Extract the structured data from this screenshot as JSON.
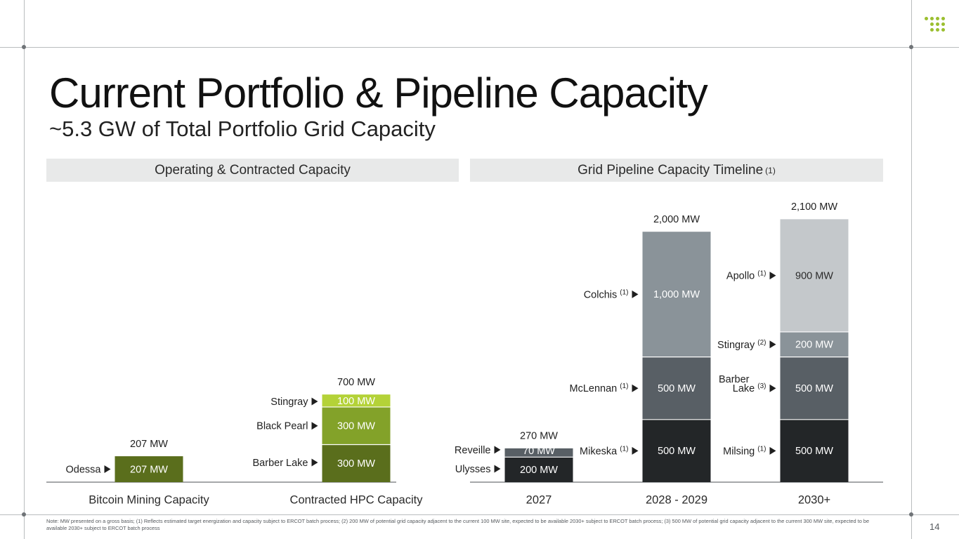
{
  "page": {
    "title": "Current Portfolio & Pipeline Capacity",
    "subtitle": "~5.3 GW of Total Portfolio Grid Capacity",
    "left_panel_title": "Operating & Contracted Capacity",
    "right_panel_title": "Grid Pipeline Capacity Timeline",
    "right_panel_note": "(1)",
    "footnote": "Note: MW presented on a gross basis; (1) Reflects estimated target energization and capacity subject to ERCOT batch process; (2) 200 MW of potential grid capacity adjacent to the current 100 MW site, expected to be available 2030+ subject to ERCOT batch process; (3) 500 MW of potential grid capacity adjacent to the current 300 MW site, expected to be available 2030+ subject to ERCOT batch process",
    "page_number": "14",
    "logo_icon": "dot-grid-logo-icon"
  },
  "colors": {
    "frame": "#b9bcbe",
    "panel_header_bg": "#e8e9e9",
    "logo_green": "#9bbf2f"
  },
  "chart_data": [
    {
      "type": "bar",
      "stacked": true,
      "title": "Operating & Contracted Capacity",
      "unit": "MW",
      "categories": [
        "Bitcoin Mining Capacity",
        "Contracted HPC Capacity"
      ],
      "totals": [
        "207 MW",
        "700 MW"
      ],
      "bars": [
        {
          "category": "Bitcoin Mining Capacity",
          "total": 207,
          "segments": [
            {
              "site": "Odessa",
              "value": 207,
              "label": "207 MW",
              "color": "#5a6e1c",
              "text_color": "#ffffff"
            }
          ]
        },
        {
          "category": "Contracted HPC Capacity",
          "total": 700,
          "segments": [
            {
              "site": "Barber Lake",
              "value": 300,
              "label": "300 MW",
              "color": "#5a6e1c",
              "text_color": "#ffffff"
            },
            {
              "site": "Black Pearl",
              "value": 300,
              "label": "300 MW",
              "color": "#83a229",
              "text_color": "#ffffff"
            },
            {
              "site": "Stingray",
              "value": 100,
              "label": "100 MW",
              "color": "#b4d238",
              "text_color": "#ffffff"
            }
          ]
        }
      ]
    },
    {
      "type": "bar",
      "stacked": true,
      "title": "Grid Pipeline Capacity Timeline",
      "unit": "MW",
      "categories": [
        "2027",
        "2028 - 2029",
        "2030+"
      ],
      "totals": [
        "270 MW",
        "2,000 MW",
        "2,100 MW"
      ],
      "bars": [
        {
          "category": "2027",
          "total": 270,
          "segments": [
            {
              "site": "Ulysses",
              "note": "",
              "value": 200,
              "label": "200 MW",
              "color": "#232628",
              "text_color": "#ffffff"
            },
            {
              "site": "Reveille",
              "note": "",
              "value": 70,
              "label": "70 MW",
              "color": "#585f65",
              "text_color": "#ffffff"
            }
          ]
        },
        {
          "category": "2028 - 2029",
          "total": 2000,
          "segments": [
            {
              "site": "Mikeska",
              "note": "(1)",
              "value": 500,
              "label": "500 MW",
              "color": "#232628",
              "text_color": "#ffffff"
            },
            {
              "site": "McLennan",
              "note": "(1)",
              "value": 500,
              "label": "500 MW",
              "color": "#585f65",
              "text_color": "#ffffff"
            },
            {
              "site": "Colchis",
              "note": "(1)",
              "value": 1000,
              "label": "1,000 MW",
              "color": "#8a9399",
              "text_color": "#ffffff"
            }
          ]
        },
        {
          "category": "2030+",
          "total": 2100,
          "segments": [
            {
              "site": "Milsing",
              "note": "(1)",
              "value": 500,
              "label": "500 MW",
              "color": "#232628",
              "text_color": "#ffffff"
            },
            {
              "site": "Barber Lake",
              "note": "(3)",
              "value": 500,
              "label": "500 MW",
              "color": "#585f65",
              "text_color": "#ffffff"
            },
            {
              "site": "Stingray",
              "note": "(2)",
              "value": 200,
              "label": "200 MW",
              "color": "#8a9399",
              "text_color": "#ffffff"
            },
            {
              "site": "Apollo",
              "note": "(1)",
              "value": 900,
              "label": "900 MW",
              "color": "#c4c8cb",
              "text_color": "#2a2a2a"
            }
          ]
        }
      ]
    }
  ]
}
